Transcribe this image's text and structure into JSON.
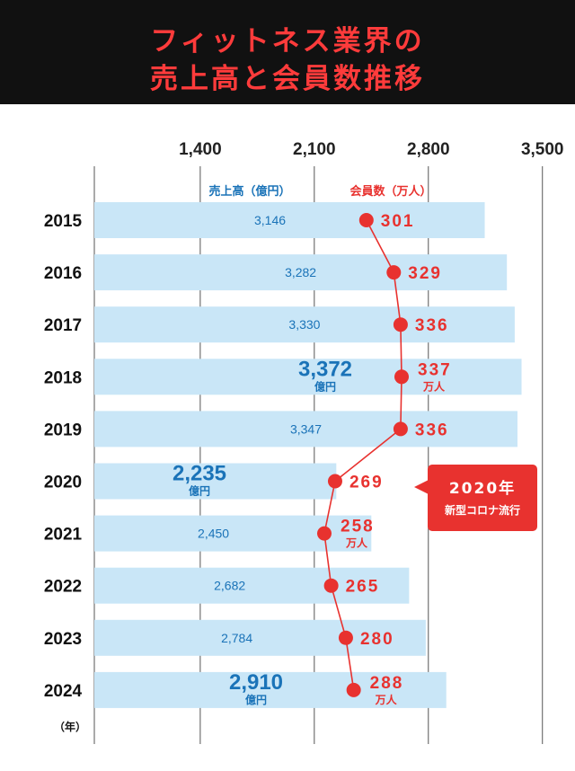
{
  "header": {
    "title_line1": "フィットネス業界の",
    "title_line2": "売上高と会員数推移"
  },
  "callout": {
    "title": "2020年",
    "subtitle": "新型コロナ流行"
  },
  "chart_data": {
    "type": "bar+line",
    "categories": [
      "2015",
      "2016",
      "2017",
      "2018",
      "2019",
      "2020",
      "2021",
      "2022",
      "2023",
      "2024"
    ],
    "x_axis_label": "（年）",
    "x_ticks": [
      "1,400",
      "2,100",
      "2,800",
      "3,500"
    ],
    "xlim": [
      750,
      3700
    ],
    "grid": true,
    "series": [
      {
        "name": "売上高（億円）",
        "type": "bar",
        "color": "#c9e6f7",
        "label_color": "#1a73b8",
        "values": [
          3146,
          3282,
          3330,
          3372,
          3347,
          2235,
          2450,
          2682,
          2784,
          2910
        ],
        "labels": [
          "3,146",
          "3,282",
          "3,330",
          "3,372",
          "3,347",
          "2,235",
          "2,450",
          "2,682",
          "2,784",
          "2,910"
        ],
        "unit_label": "億円",
        "emphasized": [
          3,
          5,
          9
        ]
      },
      {
        "name": "会員数（万人）",
        "type": "line",
        "color": "#e8322f",
        "values": [
          301,
          329,
          336,
          337,
          336,
          269,
          258,
          265,
          280,
          288
        ],
        "labels": [
          "301",
          "329",
          "336",
          "337",
          "336",
          "269",
          "258",
          "265",
          "280",
          "288"
        ],
        "unit_label": "万人",
        "unit_shown": [
          3,
          6,
          9
        ]
      }
    ]
  }
}
